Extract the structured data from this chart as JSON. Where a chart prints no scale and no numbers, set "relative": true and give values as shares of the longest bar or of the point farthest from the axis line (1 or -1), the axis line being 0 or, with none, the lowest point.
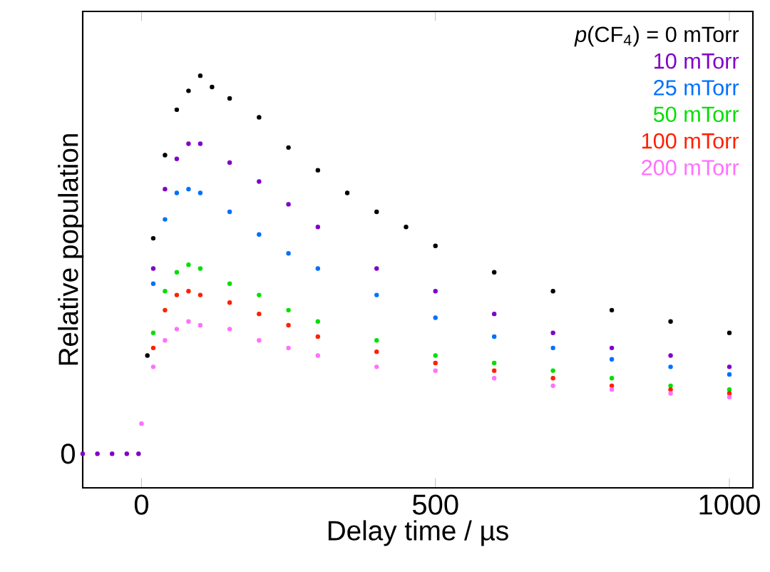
{
  "chart_data": {
    "type": "scatter",
    "xlabel": "Delay time / µs",
    "ylabel": "Relative population",
    "relative": true,
    "marker": "circle",
    "legend": "top right",
    "xlim": [
      -100,
      1040
    ],
    "xticks": [
      0,
      500,
      1000
    ],
    "annotations": [
      "0"
    ],
    "x": [
      10,
      20,
      40,
      60,
      80,
      100,
      120,
      150,
      200,
      250,
      300,
      350,
      400,
      450,
      500,
      600,
      700,
      800,
      900,
      1000
    ],
    "series": [
      {
        "name": "*p*(CF$_{4}$) = 0 mTorr",
        "color": "#000000",
        "values": [
          0.26,
          0.57,
          0.79,
          0.91,
          0.96,
          1.0,
          0.97,
          0.94,
          0.89,
          0.81,
          0.75,
          0.69,
          0.64,
          0.6,
          0.55,
          0.48,
          0.43,
          0.38,
          0.35,
          0.32
        ]
      },
      {
        "name": "10 mTorr",
        "color": "#8000c8",
        "x": [
          -100,
          -75,
          -50,
          -25,
          -5,
          20,
          40,
          60,
          80,
          100,
          150,
          200,
          250,
          300,
          400,
          500,
          600,
          700,
          800,
          900,
          1000
        ],
        "values": [
          0,
          0,
          0,
          0,
          0,
          0.49,
          0.7,
          0.78,
          0.82,
          0.82,
          0.77,
          0.72,
          0.66,
          0.6,
          0.49,
          0.43,
          0.37,
          0.32,
          0.28,
          0.26,
          0.23
        ]
      },
      {
        "name": "25 mTorr",
        "color": "#0070ff",
        "x": [
          20,
          40,
          60,
          80,
          100,
          150,
          200,
          250,
          300,
          400,
          500,
          600,
          700,
          800,
          900,
          1000
        ],
        "values": [
          0.45,
          0.62,
          0.69,
          0.7,
          0.69,
          0.64,
          0.58,
          0.53,
          0.49,
          0.42,
          0.36,
          0.31,
          0.28,
          0.25,
          0.23,
          0.21
        ]
      },
      {
        "name": "50 mTorr",
        "color": "#00e000",
        "x": [
          20,
          40,
          60,
          80,
          100,
          150,
          200,
          250,
          300,
          400,
          500,
          600,
          700,
          800,
          900,
          1000
        ],
        "values": [
          0.32,
          0.43,
          0.48,
          0.5,
          0.49,
          0.45,
          0.42,
          0.38,
          0.35,
          0.3,
          0.26,
          0.24,
          0.22,
          0.2,
          0.18,
          0.17
        ]
      },
      {
        "name": "100 mTorr",
        "color": "#ff2000",
        "x": [
          20,
          40,
          60,
          80,
          100,
          150,
          200,
          250,
          300,
          400,
          500,
          600,
          700,
          800,
          900,
          1000
        ],
        "values": [
          0.28,
          0.38,
          0.42,
          0.43,
          0.42,
          0.4,
          0.37,
          0.34,
          0.31,
          0.27,
          0.24,
          0.22,
          0.2,
          0.18,
          0.17,
          0.16
        ]
      },
      {
        "name": "200 mTorr",
        "color": "#ff70ff",
        "x": [
          0,
          20,
          40,
          60,
          80,
          100,
          150,
          200,
          250,
          300,
          400,
          500,
          600,
          700,
          800,
          900,
          1000
        ],
        "values": [
          0.08,
          0.23,
          0.3,
          0.33,
          0.35,
          0.34,
          0.33,
          0.3,
          0.28,
          0.26,
          0.23,
          0.22,
          0.2,
          0.18,
          0.17,
          0.16,
          0.15
        ]
      }
    ]
  }
}
